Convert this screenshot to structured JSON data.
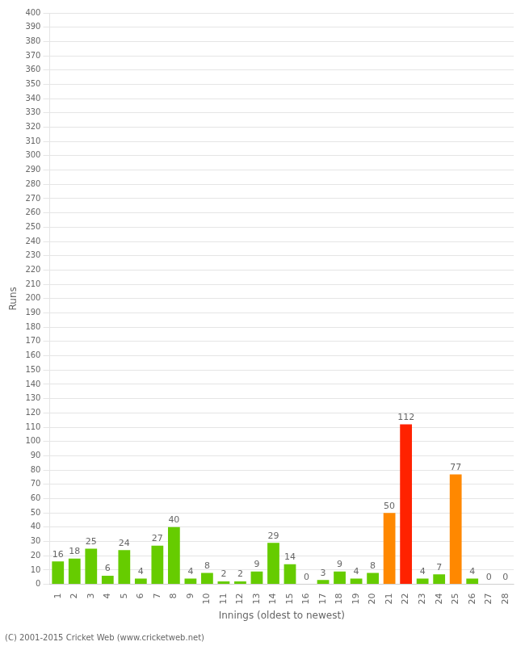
{
  "chart_data": {
    "type": "bar",
    "categories": [
      "1",
      "2",
      "3",
      "4",
      "5",
      "6",
      "7",
      "8",
      "9",
      "10",
      "11",
      "12",
      "13",
      "14",
      "15",
      "16",
      "17",
      "18",
      "19",
      "20",
      "21",
      "22",
      "23",
      "24",
      "25",
      "26",
      "27",
      "28"
    ],
    "values": [
      16,
      18,
      25,
      6,
      24,
      4,
      27,
      40,
      4,
      8,
      2,
      2,
      9,
      29,
      14,
      0,
      3,
      9,
      4,
      8,
      50,
      112,
      4,
      7,
      77,
      4,
      0,
      0
    ],
    "colors": [
      "#66cc00",
      "#66cc00",
      "#66cc00",
      "#66cc00",
      "#66cc00",
      "#66cc00",
      "#66cc00",
      "#66cc00",
      "#66cc00",
      "#66cc00",
      "#66cc00",
      "#66cc00",
      "#66cc00",
      "#66cc00",
      "#66cc00",
      "#66cc00",
      "#66cc00",
      "#66cc00",
      "#66cc00",
      "#66cc00",
      "#ff8800",
      "#ff2200",
      "#66cc00",
      "#66cc00",
      "#ff8800",
      "#66cc00",
      "#66cc00",
      "#66cc00"
    ],
    "xlabel": "Innings (oldest to newest)",
    "ylabel": "Runs",
    "ylim": [
      0,
      400
    ],
    "yticks": [
      0,
      10,
      20,
      30,
      40,
      50,
      60,
      70,
      80,
      90,
      100,
      110,
      120,
      130,
      140,
      150,
      160,
      170,
      180,
      190,
      200,
      210,
      220,
      230,
      240,
      250,
      260,
      270,
      280,
      290,
      300,
      310,
      320,
      330,
      340,
      350,
      360,
      370,
      380,
      390,
      400
    ],
    "grid": true,
    "data_labels": true,
    "footer": "(C) 2001-2015 Cricket Web (www.cricketweb.net)"
  }
}
